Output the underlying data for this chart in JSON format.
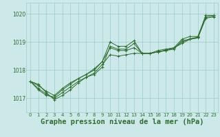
{
  "background_color": "#cce8e8",
  "grid_color": "#99cccc",
  "line_color": "#2d6e2d",
  "xlabel": "Graphe pression niveau de la mer (hPa)",
  "xlabel_fontsize": 7.5,
  "ylim": [
    1016.5,
    1020.4
  ],
  "xlim": [
    -0.5,
    23.5
  ],
  "yticks": [
    1017,
    1018,
    1019,
    1020
  ],
  "xticks": [
    0,
    1,
    2,
    3,
    4,
    5,
    6,
    7,
    8,
    9,
    10,
    11,
    12,
    13,
    14,
    15,
    16,
    17,
    18,
    19,
    20,
    21,
    22,
    23
  ],
  "series": [
    [
      1017.6,
      1017.5,
      1017.2,
      1016.95,
      1017.1,
      1017.3,
      1017.55,
      1017.75,
      1017.85,
      1018.1,
      1018.85,
      1018.75,
      1018.75,
      1018.95,
      1018.6,
      1018.6,
      1018.65,
      1018.7,
      1018.75,
      1019.05,
      1019.1,
      1019.15,
      1019.95,
      1019.95
    ],
    [
      1017.6,
      1017.35,
      1017.15,
      1017.0,
      1017.2,
      1017.4,
      1017.6,
      1017.75,
      1017.9,
      1018.2,
      1018.55,
      1018.5,
      1018.55,
      1018.6,
      1018.6,
      1018.6,
      1018.65,
      1018.7,
      1018.8,
      1018.95,
      1019.1,
      1019.15,
      1019.85,
      1019.9
    ],
    [
      1017.6,
      1017.3,
      1017.1,
      1017.05,
      1017.3,
      1017.5,
      1017.7,
      1017.85,
      1018.05,
      1018.3,
      1019.0,
      1018.85,
      1018.85,
      1019.05,
      1018.6,
      1018.6,
      1018.7,
      1018.75,
      1018.8,
      1019.1,
      1019.2,
      1019.2,
      1019.95,
      1019.95
    ],
    [
      1017.6,
      1017.45,
      1017.25,
      1017.1,
      1017.35,
      1017.55,
      1017.7,
      1017.85,
      1018.0,
      1018.3,
      1018.8,
      1018.7,
      1018.7,
      1018.8,
      1018.6,
      1018.6,
      1018.65,
      1018.72,
      1018.78,
      1019.0,
      1019.12,
      1019.18,
      1019.9,
      1019.92
    ]
  ]
}
